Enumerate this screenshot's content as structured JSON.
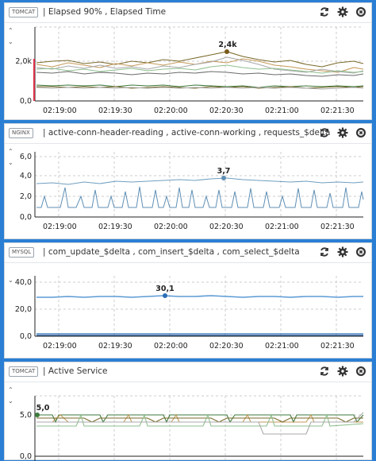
{
  "panels": [
    {
      "badge": "TOMCAT",
      "title": "| Elapsed 90% , Elapsed Time",
      "chart_data": {
        "type": "line",
        "y_ticks": [
          "0,0",
          "2,0k"
        ],
        "x_ticks": [
          "02:19:00",
          "02:19:30",
          "02:20:00",
          "02:20:30",
          "02:21:00",
          "02:21:30"
        ],
        "highlight_label": "2,4k",
        "colors": [
          "#7a6a2a",
          "#8fbf8f",
          "#a9a9a9",
          "#c59a5a",
          "#3d7a3d",
          "#6b6b6b"
        ],
        "grid": "dashed"
      }
    },
    {
      "badge": "NGINX",
      "title": "| active-conn-header-reading , active-conn-working , requests_$delta",
      "chart_data": {
        "type": "line",
        "y_ticks": [
          "0,0",
          "2,0",
          "4,0",
          "6,0"
        ],
        "x_ticks": [
          "02:19:00",
          "02:19:30",
          "02:20:00",
          "02:20:30",
          "02:21:00",
          "02:21:30"
        ],
        "highlight_label": "3,7",
        "colors": [
          "#6f9fc0",
          "#5f8fb5"
        ],
        "grid": "dashed"
      }
    },
    {
      "badge": "MYSQL",
      "title": "| com_update_$delta , com_insert_$delta , com_select_$delta",
      "chart_data": {
        "type": "line",
        "y_ticks": [
          "0,0",
          "20,0",
          "40,0"
        ],
        "x_ticks": [
          "02:19:00",
          "02:19:30",
          "02:20:00",
          "02:20:30",
          "02:21:00",
          "02:21:30"
        ],
        "highlight_label": "30,1",
        "colors": [
          "#5b9bd5",
          "#2a6db5",
          "#1f4f8f"
        ],
        "grid": "dashed"
      }
    },
    {
      "badge": "TOMCAT",
      "title": "| Active Service",
      "chart_data": {
        "type": "line",
        "y_ticks": [
          "0,0",
          "5,0"
        ],
        "highlight_label": "5,0",
        "colors": [
          "#7a6a2a",
          "#8fbf8f",
          "#a9a9a9",
          "#c59a5a",
          "#3d7a3d"
        ],
        "grid": "dashed"
      }
    }
  ],
  "icons": [
    "refresh-icon",
    "gear-icon",
    "close-icon"
  ]
}
